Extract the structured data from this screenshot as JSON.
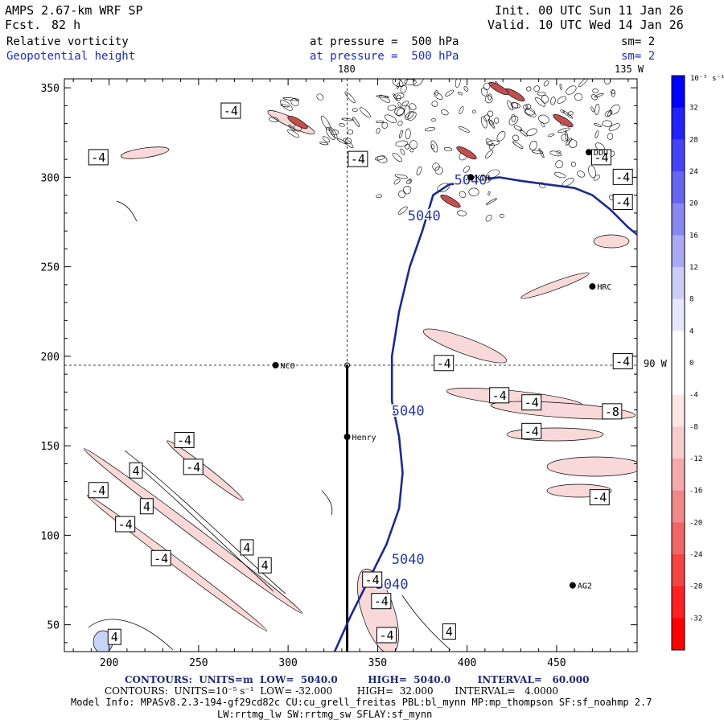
{
  "header": {
    "model": "AMPS 2.67-km WRF SP",
    "fcst_label": "Fcst.",
    "fcst_value": "82 h",
    "init": "Init. 00 UTC Sun 11 Jan 26",
    "valid": "Valid. 10 UTC Wed 14 Jan 26",
    "field1": "Relative vorticity",
    "field2": "Geopotential height",
    "level1": "at pressure =  500 hPa",
    "level2": "at pressure =  500 hPa",
    "sm1": "sm= 2",
    "sm2": "sm= 2",
    "lon_180": "180",
    "lon_135w": "135 W",
    "lon_90w": "90 W"
  },
  "footer": {
    "line1": "CONTOURS:  UNITS=m  LOW=  5040.0         HIGH=  5040.0        INTERVAL=   60.000",
    "line2": "CONTOURS:  UNITS=10⁻⁵ s⁻¹  LOW= -32.000        HIGH=  32.000       INTERVAL=   4.0000",
    "line3": "Model Info: MPASv8.2.3-194-gf29cd82c CU:cu_grell_freitas PBL:bl_mynn MP:mp_thompson SF:sf_noahmp 2.7",
    "line4": "LW:rrtmg_lw SW:rrtmg_sw SFLAY:sf_mynn"
  },
  "colorbar": {
    "unit_label": "10⁻⁵ s⁻¹",
    "ticks": [
      "32",
      "28",
      "24",
      "20",
      "16",
      "12",
      "8",
      "4",
      "0",
      "-4",
      "-8",
      "-12",
      "-16",
      "-20",
      "-24",
      "-28",
      "-32"
    ],
    "colors": [
      "#0000ff",
      "#2222ff",
      "#4444f4",
      "#6666f0",
      "#8888f0",
      "#aaaaf4",
      "#ccccf8",
      "#e6e6fc",
      "#ffffff",
      "#ffffff",
      "#fce6e6",
      "#f8cccc",
      "#f4aaaa",
      "#f08888",
      "#f06666",
      "#f44444",
      "#ff2222",
      "#ff0000"
    ]
  },
  "chart_data": {
    "type": "contour",
    "xlim": [
      175,
      495
    ],
    "ylim": [
      35,
      355
    ],
    "xticks": [
      200,
      250,
      300,
      350,
      400,
      450
    ],
    "yticks": [
      50,
      100,
      150,
      200,
      250,
      300,
      350
    ],
    "xtick_labels": [
      "200",
      "250",
      "300",
      "350",
      "400",
      "450"
    ],
    "ytick_labels": [
      "50",
      "100",
      "150",
      "200",
      "250",
      "300",
      "350"
    ],
    "crosshair": {
      "x": 333,
      "y": 195
    },
    "section_line": {
      "x": 333,
      "y_from": 35,
      "y_to": 195
    },
    "height_contour": {
      "value": 5040,
      "points": [
        [
          326,
          35
        ],
        [
          335,
          55
        ],
        [
          345,
          75
        ],
        [
          355,
          95
        ],
        [
          362,
          115
        ],
        [
          364,
          135
        ],
        [
          362,
          155
        ],
        [
          358,
          175
        ],
        [
          358,
          200
        ],
        [
          362,
          225
        ],
        [
          368,
          250
        ],
        [
          375,
          270
        ],
        [
          381,
          290
        ],
        [
          390,
          296
        ],
        [
          405,
          298
        ],
        [
          418,
          300
        ],
        [
          430,
          298
        ],
        [
          445,
          296
        ],
        [
          460,
          294
        ],
        [
          470,
          290
        ],
        [
          480,
          282
        ],
        [
          490,
          272
        ],
        [
          495,
          268
        ]
      ],
      "labels": [
        {
          "text": "5040",
          "x": 376,
          "y": 276
        },
        {
          "text": "5040",
          "x": 402,
          "y": 296
        },
        {
          "text": "5040",
          "x": 367,
          "y": 167
        },
        {
          "text": "5040",
          "x": 367,
          "y": 84
        },
        {
          "text": "5040",
          "x": 358,
          "y": 70
        }
      ]
    },
    "stations": [
      {
        "name": "NCO",
        "x": 293,
        "y": 195
      },
      {
        "name": "Henry",
        "x": 333,
        "y": 155
      },
      {
        "name": "KIH",
        "x": 402,
        "y": 300
      },
      {
        "name": "DDU",
        "x": 468,
        "y": 314
      },
      {
        "name": "HRC",
        "x": 470,
        "y": 239
      },
      {
        "name": "AG2",
        "x": 459,
        "y": 72
      }
    ],
    "contour_labels": [
      {
        "text": "-4",
        "x": 268,
        "y": 337
      },
      {
        "text": "-4",
        "x": 194,
        "y": 311
      },
      {
        "text": "-4",
        "x": 339,
        "y": 310
      },
      {
        "text": "-4",
        "x": 475,
        "y": 311
      },
      {
        "text": "-4",
        "x": 487,
        "y": 300
      },
      {
        "text": "-4",
        "x": 487,
        "y": 286
      },
      {
        "text": "-4",
        "x": 387,
        "y": 196
      },
      {
        "text": "-4",
        "x": 487,
        "y": 197
      },
      {
        "text": "-4",
        "x": 418,
        "y": 178
      },
      {
        "text": "-4",
        "x": 436,
        "y": 174
      },
      {
        "text": "-8",
        "x": 481,
        "y": 169
      },
      {
        "text": "-4",
        "x": 436,
        "y": 158
      },
      {
        "text": "-4",
        "x": 242,
        "y": 153
      },
      {
        "text": "-4",
        "x": 247,
        "y": 138
      },
      {
        "text": "-4",
        "x": 474,
        "y": 121
      },
      {
        "text": "-4",
        "x": 194,
        "y": 125
      },
      {
        "text": "-4",
        "x": 209,
        "y": 106
      },
      {
        "text": "-4",
        "x": 229,
        "y": 87
      },
      {
        "text": "-4",
        "x": 347,
        "y": 75
      },
      {
        "text": "-4",
        "x": 352,
        "y": 63
      },
      {
        "text": "-4",
        "x": 355,
        "y": 44
      },
      {
        "text": "4",
        "x": 215,
        "y": 136
      },
      {
        "text": "4",
        "x": 221,
        "y": 116
      },
      {
        "text": "4",
        "x": 277,
        "y": 93
      },
      {
        "text": "4",
        "x": 287,
        "y": 83
      },
      {
        "text": "4",
        "x": 203,
        "y": 43
      },
      {
        "text": "4",
        "x": 390,
        "y": 46
      }
    ]
  }
}
